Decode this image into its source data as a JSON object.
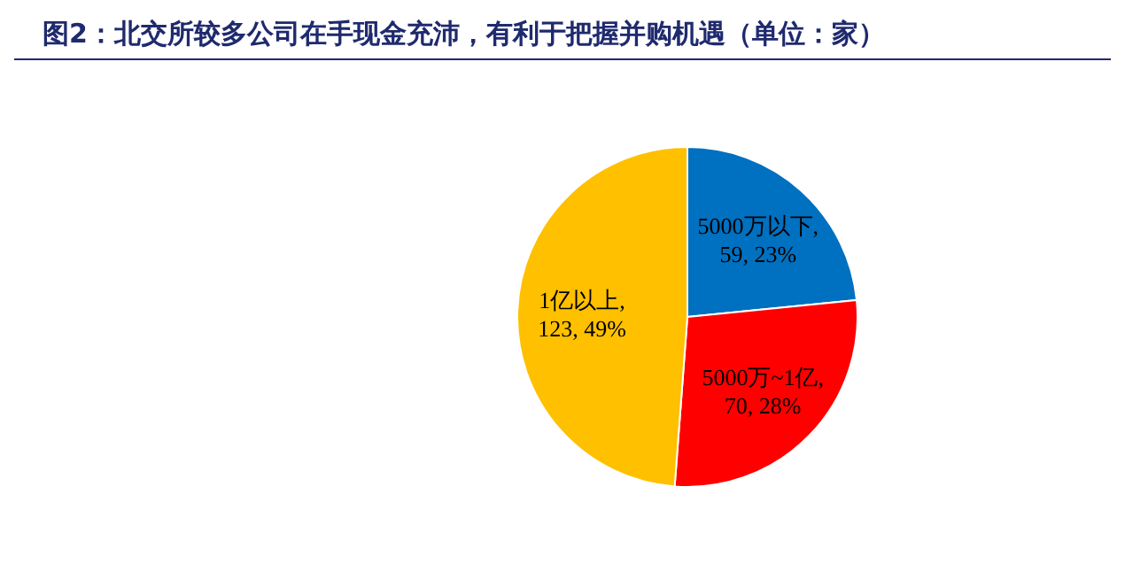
{
  "chart_data": {
    "type": "pie",
    "title": "图2：北交所较多公司在手现金充沛，有利于把握并购机遇（单位：家）",
    "categories": [
      "5000万以下",
      "5000万~1亿",
      "1亿以上"
    ],
    "values": [
      59,
      70,
      123
    ],
    "colors": [
      "#0070c0",
      "#ff0000",
      "#ffc000"
    ],
    "value_labels": [
      ", 59, 23%",
      ", 70, 28%",
      ", 123, 49%"
    ],
    "legend": false
  }
}
